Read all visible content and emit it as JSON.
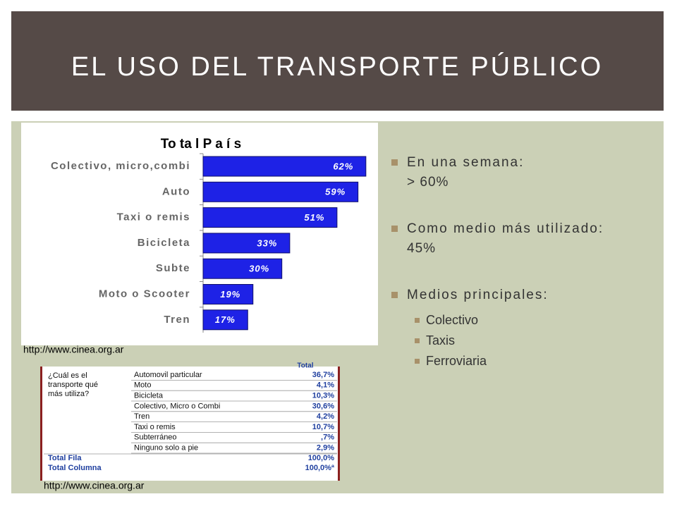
{
  "title": "EL USO DEL TRANSPORTE PÚBLICO",
  "chart_data": {
    "type": "bar",
    "orientation": "horizontal",
    "title": "To ta l P a í s",
    "categories": [
      "Colectivo, micro,combi",
      "Auto",
      "Taxi o remis",
      "Bicicleta",
      "Subte",
      "Moto o Scooter",
      "Tren"
    ],
    "values": [
      62,
      59,
      51,
      33,
      30,
      19,
      17
    ],
    "value_labels": [
      "62%",
      "59%",
      "51%",
      "33%",
      "30%",
      "19%",
      "17%"
    ],
    "color": "#1e22e6",
    "xlim": [
      0,
      65
    ]
  },
  "sources": [
    "http://www.cinea.org.ar",
    "http://www.cinea.org.ar"
  ],
  "table": {
    "header": "Total",
    "question": [
      "¿Cuál es el",
      "transporte qué",
      "más utiliza?"
    ],
    "rows": [
      [
        "Automovil particular",
        "36,7%"
      ],
      [
        "Moto",
        "4,1%"
      ],
      [
        "Bicicleta",
        "10,3%"
      ],
      [
        "Colectivo, Micro o Combi",
        "30,6%"
      ],
      [
        "Tren",
        "4,2%"
      ],
      [
        "Taxi o remis",
        "10,7%"
      ],
      [
        "Subterráneo",
        ",7%"
      ],
      [
        "Ninguno solo a pie",
        "2,9%"
      ]
    ],
    "totals": [
      [
        "Total Fila",
        "100,0%"
      ],
      [
        "Total Columna",
        "100,0%ª"
      ]
    ]
  },
  "bullets": [
    {
      "lines": [
        "En una semana:",
        "> 60%"
      ]
    },
    {
      "lines": [
        "Como medio más utilizado:",
        "45%"
      ]
    },
    {
      "lines": [
        "Medios principales:"
      ],
      "sub": [
        "Colectivo",
        "Taxis",
        "Ferroviaria"
      ]
    }
  ]
}
